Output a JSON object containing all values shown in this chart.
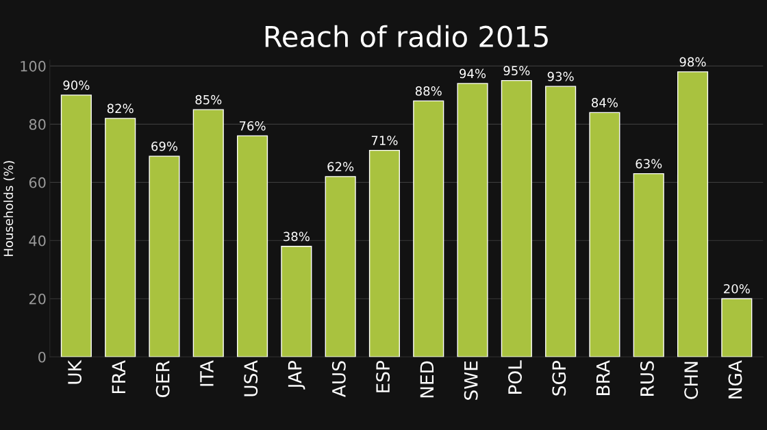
{
  "chart_data": {
    "type": "bar",
    "title": "Reach of radio 2015",
    "ylabel": "Households (%)",
    "categories": [
      "UK",
      "FRA",
      "GER",
      "ITA",
      "USA",
      "JAP",
      "AUS",
      "ESP",
      "NED",
      "SWE",
      "POL",
      "SGP",
      "BRA",
      "RUS",
      "CHN",
      "NGA"
    ],
    "values": [
      90,
      82,
      69,
      85,
      76,
      38,
      62,
      71,
      88,
      94,
      95,
      93,
      84,
      63,
      98,
      20
    ],
    "value_labels": [
      "90%",
      "82%",
      "69%",
      "85%",
      "76%",
      "38%",
      "62%",
      "71%",
      "88%",
      "94%",
      "95%",
      "93%",
      "84%",
      "63%",
      "98%",
      "20%"
    ],
    "color": "#a9c23f",
    "ylim": [
      0,
      102
    ],
    "yticks": [
      0,
      20,
      40,
      60,
      80,
      100
    ],
    "grid": "y"
  }
}
